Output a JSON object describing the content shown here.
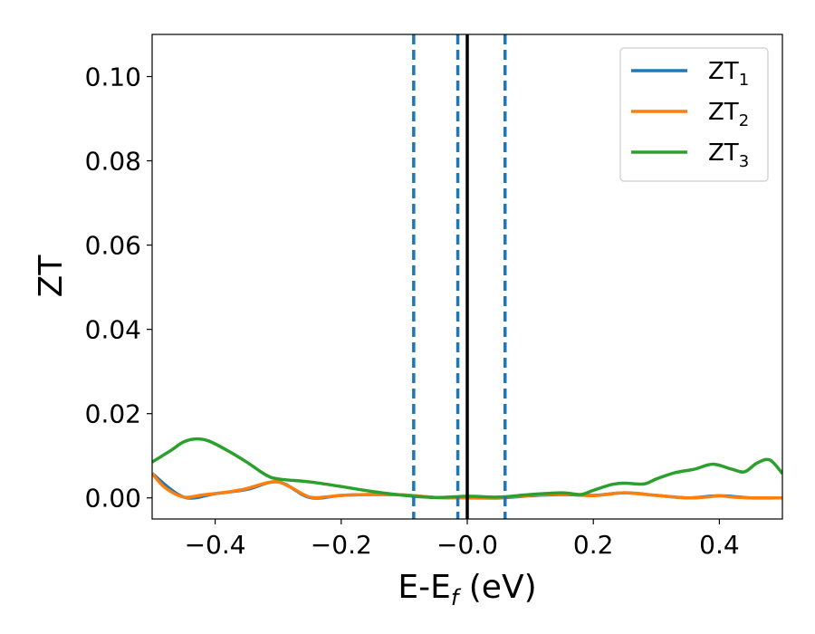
{
  "chart_data": {
    "type": "line",
    "xlabel": "E-E",
    "xlabel_sub": "f",
    "xlabel_unit": " (eV)",
    "ylabel": "ZT",
    "xlim": [
      -0.5,
      0.5
    ],
    "ylim": [
      -0.005,
      0.11
    ],
    "xticks": [
      -0.4,
      -0.2,
      0.0,
      0.2,
      0.4
    ],
    "xtick_labels": [
      "−0.4",
      "−0.2",
      "−0.0",
      "0.2",
      "0.4"
    ],
    "yticks": [
      0.0,
      0.02,
      0.04,
      0.06,
      0.08,
      0.1
    ],
    "ytick_labels": [
      "0.00",
      "0.02",
      "0.04",
      "0.06",
      "0.08",
      "0.10"
    ],
    "grid": false,
    "legend_position": "top-right",
    "series": [
      {
        "name": "ZT",
        "name_sub": "1",
        "color": "#1f77b4",
        "x": [
          -0.5,
          -0.45,
          -0.4,
          -0.35,
          -0.3,
          -0.25,
          -0.2,
          -0.15,
          -0.1,
          -0.05,
          0.0,
          0.05,
          0.1,
          0.15,
          0.2,
          0.25,
          0.3,
          0.35,
          0.4,
          0.45,
          0.5
        ],
        "y": [
          0.0058,
          0.0002,
          0.001,
          0.002,
          0.0038,
          0.0001,
          0.0006,
          0.0008,
          0.0007,
          0.0001,
          0.0,
          0.0,
          0.0005,
          0.0008,
          0.0006,
          0.0012,
          0.0006,
          0.0,
          0.0005,
          0.0,
          0.0
        ]
      },
      {
        "name": "ZT",
        "name_sub": "2",
        "color": "#ff7f0e",
        "x": [
          -0.5,
          -0.48,
          -0.45,
          -0.42,
          -0.38,
          -0.35,
          -0.32,
          -0.3,
          -0.28,
          -0.25,
          -0.22,
          -0.2,
          -0.15,
          -0.1,
          -0.05,
          0.0,
          0.05,
          0.1,
          0.15,
          0.18,
          0.2,
          0.22,
          0.25,
          0.3,
          0.35,
          0.38,
          0.4,
          0.42,
          0.45,
          0.5
        ],
        "y": [
          0.0058,
          0.0025,
          0.0002,
          0.0007,
          0.0014,
          0.0022,
          0.0035,
          0.0038,
          0.0025,
          0.0002,
          0.0003,
          0.0006,
          0.0008,
          0.0007,
          0.0001,
          0.0,
          0.0001,
          0.0006,
          0.0009,
          0.0007,
          0.0005,
          0.0008,
          0.0012,
          0.0006,
          0.0,
          0.0002,
          0.0005,
          0.0002,
          0.0,
          0.0
        ]
      },
      {
        "name": "ZT",
        "name_sub": "3",
        "color": "#2ca02c",
        "x": [
          -0.5,
          -0.47,
          -0.45,
          -0.43,
          -0.41,
          -0.38,
          -0.35,
          -0.32,
          -0.3,
          -0.25,
          -0.2,
          -0.15,
          -0.1,
          -0.05,
          0.0,
          0.05,
          0.1,
          0.15,
          0.18,
          0.2,
          0.23,
          0.25,
          0.28,
          0.3,
          0.33,
          0.36,
          0.39,
          0.42,
          0.44,
          0.46,
          0.48,
          0.5
        ],
        "y": [
          0.0085,
          0.0113,
          0.0133,
          0.014,
          0.0135,
          0.0112,
          0.0085,
          0.0055,
          0.0045,
          0.0038,
          0.0027,
          0.0015,
          0.0006,
          0.0001,
          0.0004,
          0.0002,
          0.0008,
          0.0012,
          0.0008,
          0.0018,
          0.0032,
          0.0035,
          0.0033,
          0.0045,
          0.006,
          0.0068,
          0.008,
          0.0068,
          0.0062,
          0.0083,
          0.009,
          0.0058
        ]
      }
    ],
    "vlines": [
      {
        "x": -0.085,
        "style": "dashed",
        "color": "#1f77b4"
      },
      {
        "x": -0.015,
        "style": "dashed",
        "color": "#1f77b4"
      },
      {
        "x": 0.06,
        "style": "dashed",
        "color": "#1f77b4"
      },
      {
        "x": 0.0,
        "style": "solid",
        "color": "#000000"
      }
    ]
  }
}
